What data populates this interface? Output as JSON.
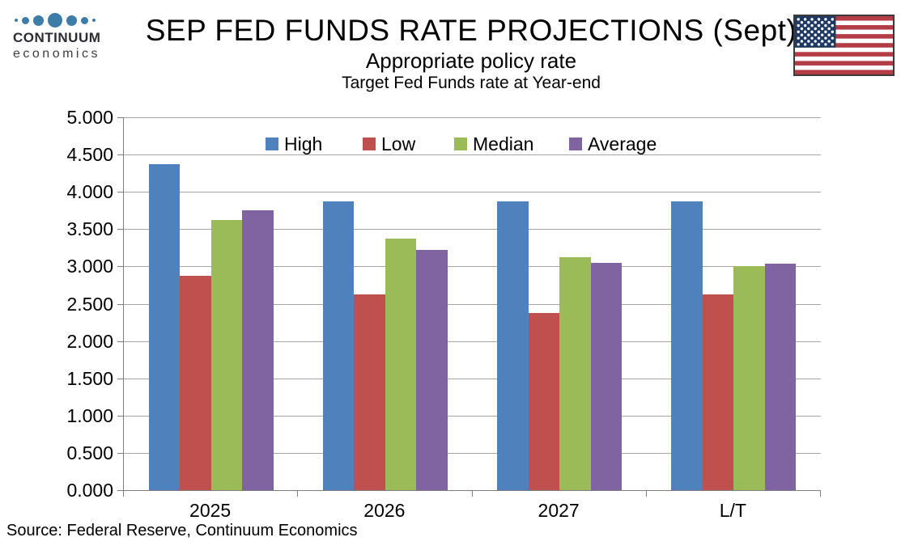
{
  "header": {
    "logo": {
      "brand": "CONTINUUM",
      "sub": "economics",
      "dot_color": "#3D7BA8"
    },
    "title": "SEP FED FUNDS RATE PROJECTIONS (Sept)",
    "subtitle": "Appropriate policy rate",
    "subtitle2": "Target Fed Funds rate at Year-end",
    "flag": {
      "name": "us-flag-icon",
      "stripe_red": "#B33C45",
      "canton_blue": "#1E3A64",
      "border": "#3A3A3A"
    }
  },
  "chart_data": {
    "type": "bar",
    "title": "SEP FED FUNDS RATE PROJECTIONS (Sept)",
    "subtitle": "Appropriate policy rate",
    "axis_note": "Target Fed Funds rate at Year-end",
    "categories": [
      "2025",
      "2026",
      "2027",
      "L/T"
    ],
    "series": [
      {
        "name": "High",
        "color": "#4F81BD",
        "values": [
          4.375,
          3.875,
          3.875,
          3.875
        ]
      },
      {
        "name": "Low",
        "color": "#C0504D",
        "values": [
          2.875,
          2.625,
          2.375,
          2.625
        ]
      },
      {
        "name": "Median",
        "color": "#9BBB59",
        "values": [
          3.625,
          3.375,
          3.125,
          3.0
        ]
      },
      {
        "name": "Average",
        "color": "#8064A2",
        "values": [
          3.75,
          3.22,
          3.05,
          3.04
        ]
      }
    ],
    "ylim": [
      0,
      5
    ],
    "ytick_step": 0.5,
    "ytick_decimals": 3,
    "grid": "horizontal",
    "gridline_color": "#A6A6A6",
    "legend_position": "top-inside",
    "xlabel": "",
    "ylabel": ""
  },
  "footer": {
    "source": "Source: Federal Reserve, Continuum Economics"
  }
}
